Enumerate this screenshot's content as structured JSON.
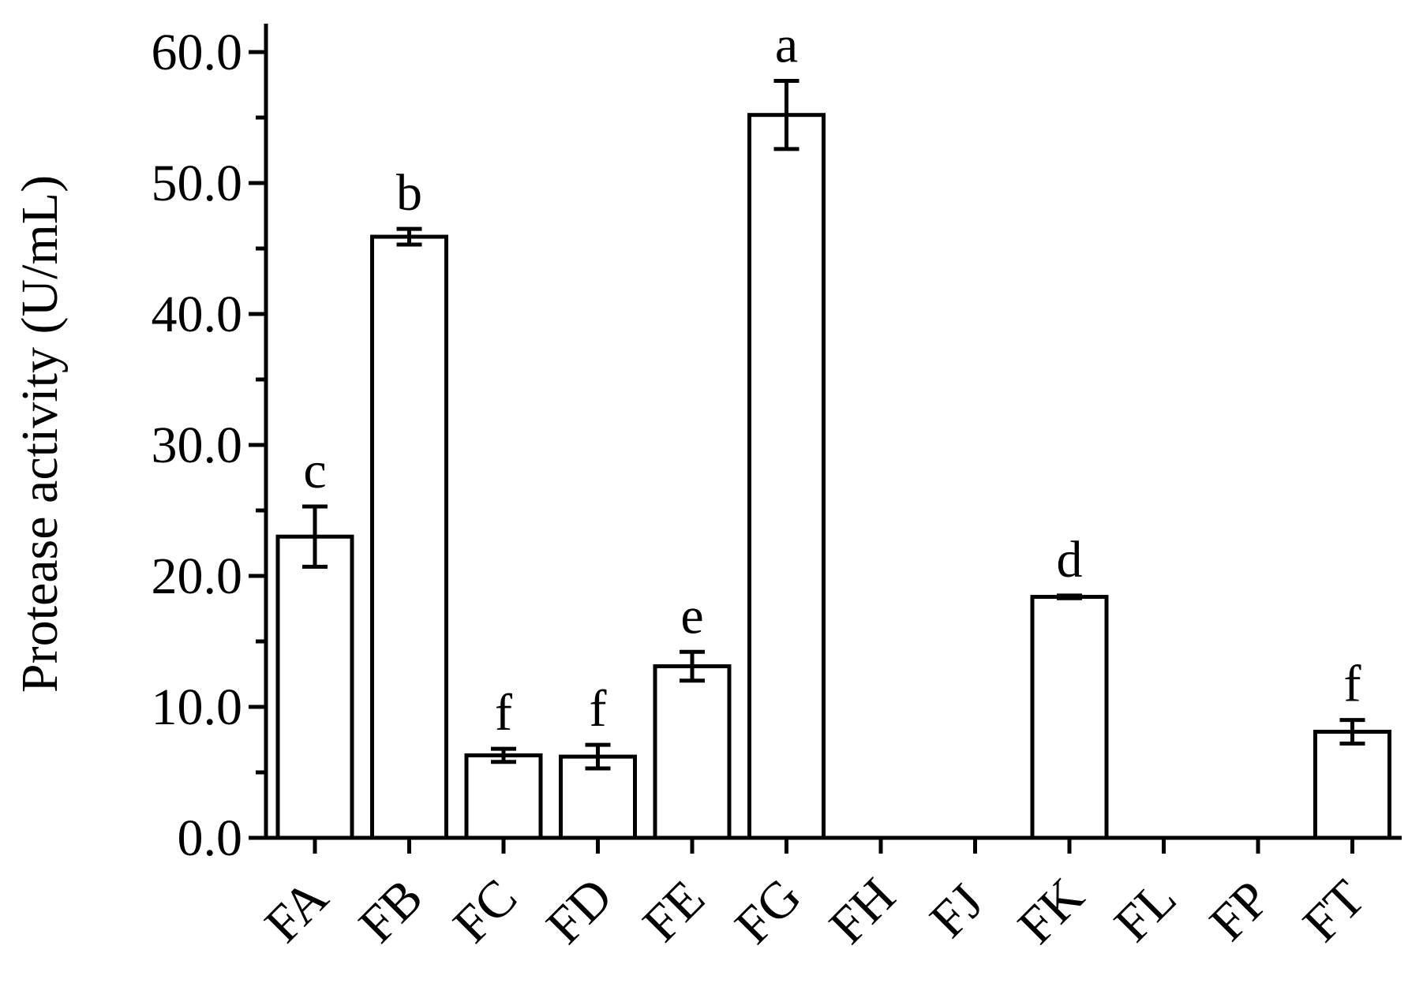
{
  "chart_data": {
    "type": "bar",
    "title": "",
    "xlabel": "",
    "ylabel": "Protease activity (U/mL)",
    "ylim": [
      0,
      60
    ],
    "yticks": [
      "0.0",
      "10.0",
      "20.0",
      "30.0",
      "40.0",
      "50.0",
      "60.0"
    ],
    "ytick_values": [
      0,
      10,
      20,
      30,
      40,
      50,
      60
    ],
    "ymajor_step": 10,
    "yminor_step": 5,
    "grid": false,
    "legend": "none",
    "categories": [
      "FA",
      "FB",
      "FC",
      "FD",
      "FE",
      "FG",
      "FH",
      "FJ",
      "FK",
      "FL",
      "FP",
      "FT"
    ],
    "values": [
      23.0,
      45.9,
      6.3,
      6.2,
      13.1,
      55.2,
      0,
      0,
      18.4,
      0,
      0,
      8.1
    ],
    "errors": [
      2.3,
      0.6,
      0.5,
      0.9,
      1.1,
      2.6,
      0,
      0,
      0.1,
      0,
      0,
      0.9
    ],
    "significance": [
      "c",
      "b",
      "f",
      "f",
      "e",
      "a",
      "",
      "",
      "d",
      "",
      "",
      "f"
    ],
    "colors": {
      "bar_fill": "#ffffff",
      "stroke": "#000000"
    }
  }
}
